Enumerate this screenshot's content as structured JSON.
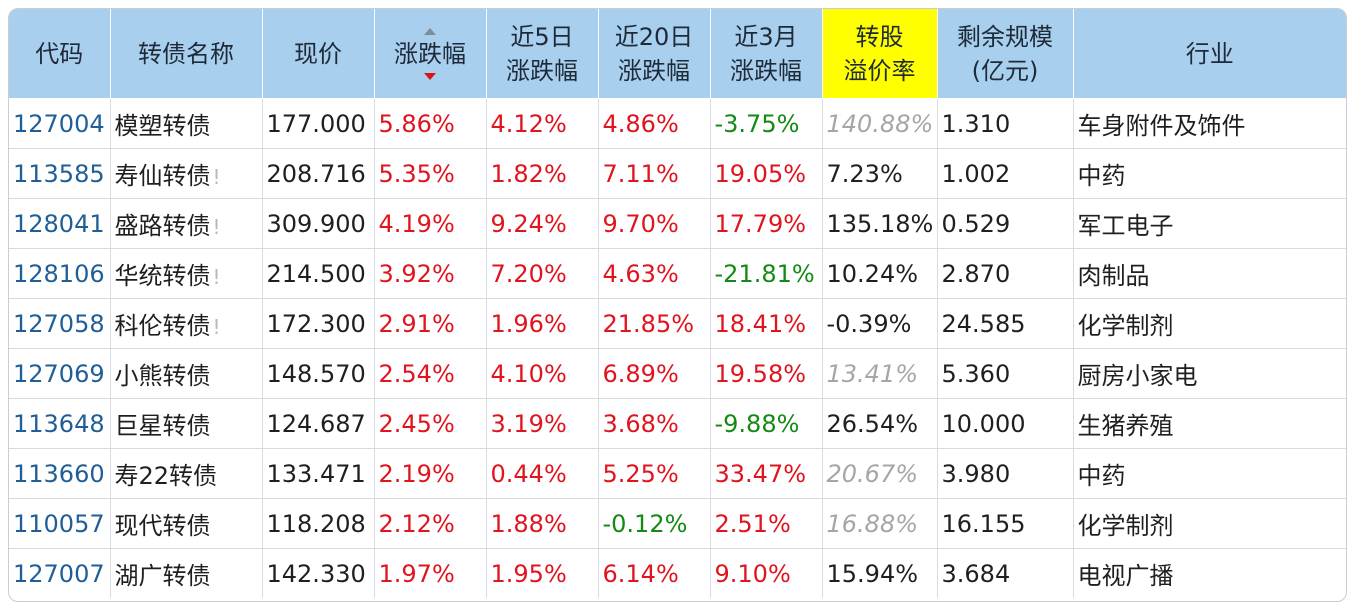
{
  "header": {
    "code": "代码",
    "name": "转债名称",
    "price": "现价",
    "change": "涨跌幅",
    "d5_line1": "近5日",
    "d5_line2": "涨跌幅",
    "d20_line1": "近20日",
    "d20_line2": "涨跌幅",
    "m3_line1": "近3月",
    "m3_line2": "涨跌幅",
    "premium_line1": "转股",
    "premium_line2": "溢价率",
    "scale_line1": "剩余规模",
    "scale_line2": "(亿元)",
    "industry": "行业"
  },
  "colors": {
    "header_bg": "#a9cfee",
    "highlight": "#ffff00",
    "up": "#e0141e",
    "down": "#148a14",
    "code": "#1f5e96",
    "muted": "#a6a6a6"
  },
  "sort": {
    "column": "change",
    "direction": "desc",
    "icon": "sort-arrows-icon"
  },
  "rows": [
    {
      "code": "127004",
      "name": "模塑转债",
      "warn": "",
      "price": "177.000",
      "chg": "5.86%",
      "d5": "4.12%",
      "d20": "4.86%",
      "m3": "-3.75%",
      "premium": "140.88%",
      "premium_muted": true,
      "scale": "1.310",
      "industry": "车身附件及饰件"
    },
    {
      "code": "113585",
      "name": "寿仙转债",
      "warn": "!",
      "price": "208.716",
      "chg": "5.35%",
      "d5": "1.82%",
      "d20": "7.11%",
      "m3": "19.05%",
      "premium": "7.23%",
      "premium_muted": false,
      "scale": "1.002",
      "industry": "中药"
    },
    {
      "code": "128041",
      "name": "盛路转债",
      "warn": "!",
      "price": "309.900",
      "chg": "4.19%",
      "d5": "9.24%",
      "d20": "9.70%",
      "m3": "17.79%",
      "premium": "135.18%",
      "premium_muted": false,
      "scale": "0.529",
      "industry": "军工电子"
    },
    {
      "code": "128106",
      "name": "华统转债",
      "warn": "!",
      "price": "214.500",
      "chg": "3.92%",
      "d5": "7.20%",
      "d20": "4.63%",
      "m3": "-21.81%",
      "premium": "10.24%",
      "premium_muted": false,
      "scale": "2.870",
      "industry": "肉制品"
    },
    {
      "code": "127058",
      "name": "科伦转债",
      "warn": "!",
      "price": "172.300",
      "chg": "2.91%",
      "d5": "1.96%",
      "d20": "21.85%",
      "m3": "18.41%",
      "premium": "-0.39%",
      "premium_muted": false,
      "scale": "24.585",
      "industry": "化学制剂"
    },
    {
      "code": "127069",
      "name": "小熊转债",
      "warn": "",
      "price": "148.570",
      "chg": "2.54%",
      "d5": "4.10%",
      "d20": "6.89%",
      "m3": "19.58%",
      "premium": "13.41%",
      "premium_muted": true,
      "scale": "5.360",
      "industry": "厨房小家电"
    },
    {
      "code": "113648",
      "name": "巨星转债",
      "warn": "",
      "price": "124.687",
      "chg": "2.45%",
      "d5": "3.19%",
      "d20": "3.68%",
      "m3": "-9.88%",
      "premium": "26.54%",
      "premium_muted": false,
      "scale": "10.000",
      "industry": "生猪养殖"
    },
    {
      "code": "113660",
      "name": "寿22转债",
      "warn": "",
      "price": "133.471",
      "chg": "2.19%",
      "d5": "0.44%",
      "d20": "5.25%",
      "m3": "33.47%",
      "premium": "20.67%",
      "premium_muted": true,
      "scale": "3.980",
      "industry": "中药"
    },
    {
      "code": "110057",
      "name": "现代转债",
      "warn": "",
      "price": "118.208",
      "chg": "2.12%",
      "d5": "1.88%",
      "d20": "-0.12%",
      "m3": "2.51%",
      "premium": "16.88%",
      "premium_muted": true,
      "scale": "16.155",
      "industry": "化学制剂"
    },
    {
      "code": "127007",
      "name": "湖广转债",
      "warn": "",
      "price": "142.330",
      "chg": "1.97%",
      "d5": "1.95%",
      "d20": "6.14%",
      "m3": "9.10%",
      "premium": "15.94%",
      "premium_muted": false,
      "scale": "3.684",
      "industry": "电视广播"
    }
  ]
}
